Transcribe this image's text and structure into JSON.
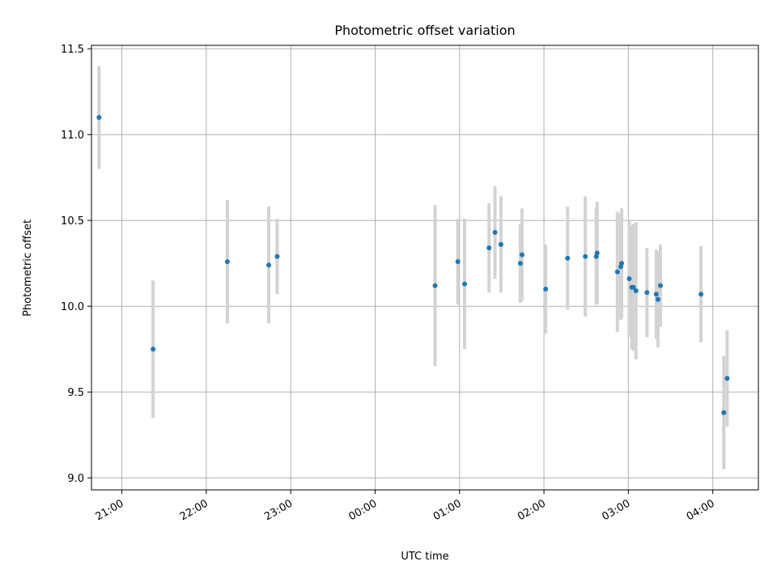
{
  "chart_data": {
    "type": "scatter",
    "title": "Photometric offset variation",
    "xlabel": "UTC time",
    "ylabel": "Photometric offset",
    "x_unit": "hours UTC (values past 24 wrap to the next day)",
    "xlim": [
      20.64,
      28.54
    ],
    "ylim": [
      8.93,
      11.52
    ],
    "xticks": [
      21,
      22,
      23,
      24,
      25,
      26,
      27,
      28
    ],
    "xtick_labels": [
      "21:00",
      "22:00",
      "23:00",
      "00:00",
      "01:00",
      "02:00",
      "03:00",
      "04:00"
    ],
    "yticks": [
      9.0,
      9.5,
      10.0,
      10.5,
      11.0,
      11.5
    ],
    "ytick_labels": [
      "9.0",
      "9.5",
      "10.0",
      "10.5",
      "11.0",
      "11.5"
    ],
    "grid": true,
    "legend": "none",
    "series": [
      {
        "marker_color": "#1f77b4",
        "errorbar_color": "#d3d3d3",
        "points": [
          {
            "x": 20.73,
            "y": 11.1,
            "err": 0.3
          },
          {
            "x": 21.37,
            "y": 9.75,
            "err": 0.4
          },
          {
            "x": 22.25,
            "y": 10.26,
            "err": 0.36
          },
          {
            "x": 22.74,
            "y": 10.24,
            "err": 0.34
          },
          {
            "x": 22.84,
            "y": 10.29,
            "err": 0.22
          },
          {
            "x": 24.71,
            "y": 10.12,
            "err": 0.47
          },
          {
            "x": 24.98,
            "y": 10.26,
            "err": 0.25
          },
          {
            "x": 25.06,
            "y": 10.13,
            "err": 0.38
          },
          {
            "x": 25.35,
            "y": 10.34,
            "err": 0.26
          },
          {
            "x": 25.42,
            "y": 10.43,
            "err": 0.27
          },
          {
            "x": 25.49,
            "y": 10.36,
            "err": 0.28
          },
          {
            "x": 25.72,
            "y": 10.25,
            "err": 0.23
          },
          {
            "x": 25.74,
            "y": 10.3,
            "err": 0.27
          },
          {
            "x": 26.02,
            "y": 10.1,
            "err": 0.26
          },
          {
            "x": 26.28,
            "y": 10.28,
            "err": 0.3
          },
          {
            "x": 26.49,
            "y": 10.29,
            "err": 0.35
          },
          {
            "x": 26.62,
            "y": 10.29,
            "err": 0.28
          },
          {
            "x": 26.63,
            "y": 10.31,
            "err": 0.3
          },
          {
            "x": 26.87,
            "y": 10.2,
            "err": 0.35
          },
          {
            "x": 26.91,
            "y": 10.23,
            "err": 0.31
          },
          {
            "x": 26.92,
            "y": 10.25,
            "err": 0.32
          },
          {
            "x": 27.01,
            "y": 10.16,
            "err": 0.34
          },
          {
            "x": 27.04,
            "y": 10.11,
            "err": 0.36
          },
          {
            "x": 27.06,
            "y": 10.11,
            "err": 0.37
          },
          {
            "x": 27.09,
            "y": 10.09,
            "err": 0.4
          },
          {
            "x": 27.22,
            "y": 10.08,
            "err": 0.26
          },
          {
            "x": 27.33,
            "y": 10.07,
            "err": 0.26
          },
          {
            "x": 27.35,
            "y": 10.04,
            "err": 0.28
          },
          {
            "x": 27.38,
            "y": 10.12,
            "err": 0.24
          },
          {
            "x": 27.86,
            "y": 10.07,
            "err": 0.28
          },
          {
            "x": 28.13,
            "y": 9.38,
            "err": 0.33
          },
          {
            "x": 28.17,
            "y": 9.58,
            "err": 0.28
          }
        ]
      }
    ]
  }
}
